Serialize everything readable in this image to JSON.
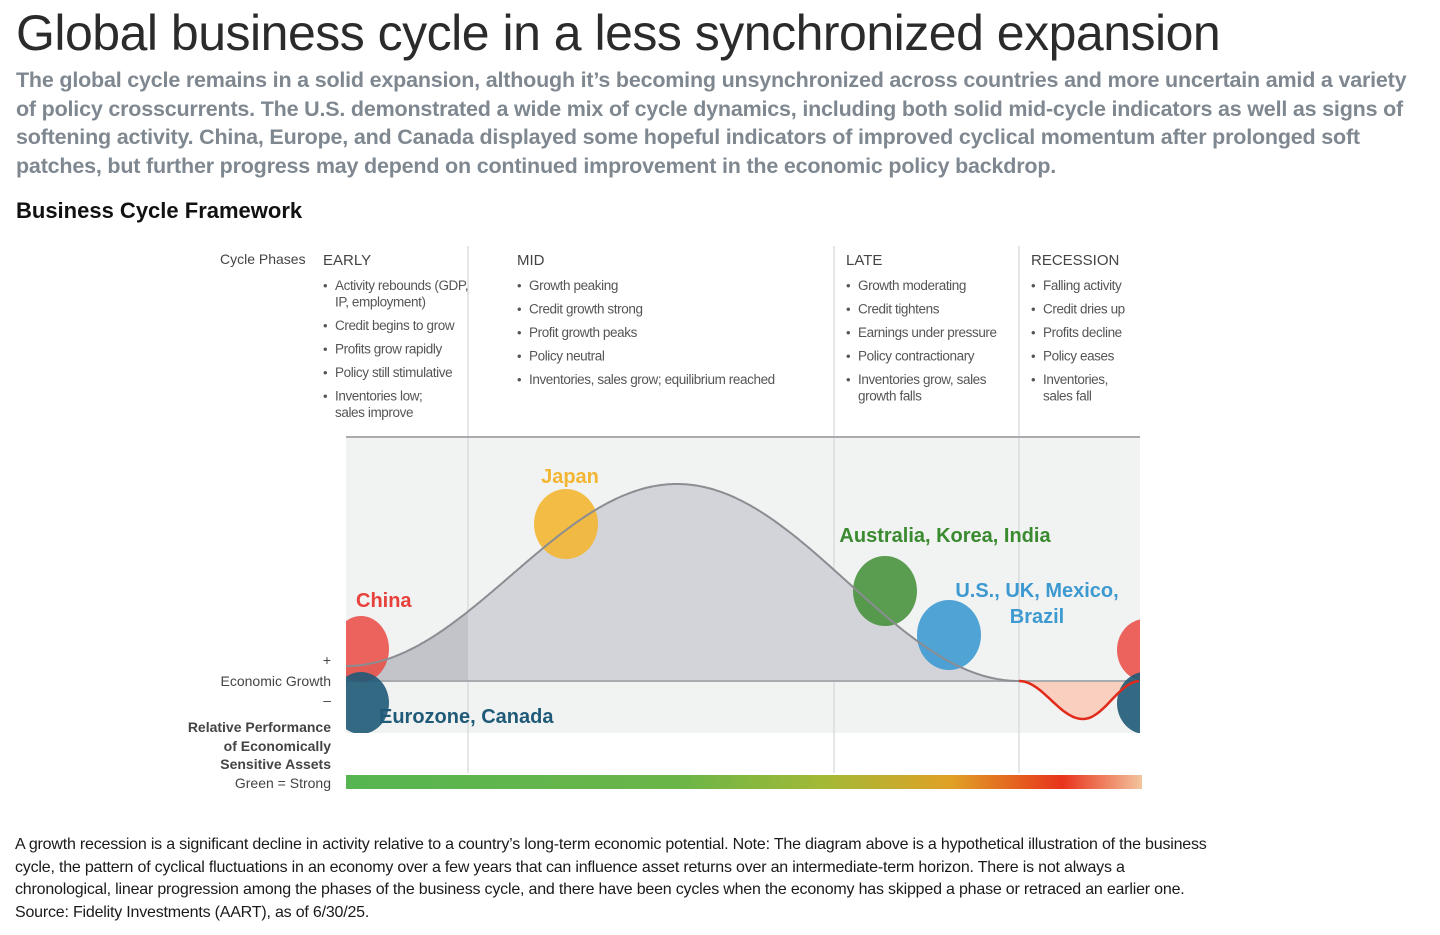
{
  "title": "Global business cycle in a less synchronized expansion",
  "subtitle": "The global cycle remains in a solid expansion, although it’s becoming unsynchronized across countries and more uncertain amid a variety of policy crosscurrents. The U.S. demonstrated a wide mix of cycle dynamics, including both solid mid-cycle indicators as well as signs of softening activity. China, Europe, and Canada displayed some hopeful indicators of improved cyclical momentum after prolonged soft patches, but further progress may depend on continued improvement in the economic policy backdrop.",
  "section_heading": "Business Cycle Framework",
  "diagram": {
    "cycle_phases_label": "Cycle Phases",
    "phases": [
      {
        "name": "EARLY",
        "bullets": [
          [
            "Activity rebounds (GDP,",
            "IP, employment)"
          ],
          [
            "Credit begins to grow"
          ],
          [
            "Profits grow rapidly"
          ],
          [
            "Policy still stimulative"
          ],
          [
            "Inventories low;",
            "sales improve"
          ]
        ]
      },
      {
        "name": "MID",
        "bullets": [
          [
            "Growth peaking"
          ],
          [
            "Credit growth strong"
          ],
          [
            "Profit growth peaks"
          ],
          [
            "Policy neutral"
          ],
          [
            "Inventories, sales grow; equilibrium reached"
          ]
        ]
      },
      {
        "name": "LATE",
        "bullets": [
          [
            "Growth moderating"
          ],
          [
            "Credit tightens"
          ],
          [
            "Earnings under pressure"
          ],
          [
            "Policy contractionary"
          ],
          [
            "Inventories grow, sales",
            "growth falls"
          ]
        ]
      },
      {
        "name": "RECESSION",
        "bullets": [
          [
            "Falling activity"
          ],
          [
            "Credit dries up"
          ],
          [
            "Profits decline"
          ],
          [
            "Policy eases"
          ],
          [
            "Inventories,",
            "sales fall"
          ]
        ]
      }
    ],
    "growth_axis": {
      "plus": "+",
      "label": "Economic Growth",
      "minus": "–"
    },
    "performance_label": [
      "Relative Performance",
      "of Economically",
      "Sensitive Assets"
    ],
    "performance_legend": "Green = Strong",
    "countries": [
      {
        "label": "China",
        "color": "#e8413c",
        "phase": "EARLY"
      },
      {
        "label": "Eurozone, Canada",
        "color": "#1f5a78",
        "phase": "EARLY"
      },
      {
        "label": "Japan",
        "color": "#f2b632",
        "phase": "MID"
      },
      {
        "label": "Australia, Korea, India",
        "color": "#3a8a2f",
        "phase": "LATE"
      },
      {
        "label": [
          "U.S., UK, Mexico,",
          "Brazil"
        ],
        "color": "#3d9ad1",
        "phase": "LATE"
      }
    ],
    "colors": {
      "curve_area": "#d3d4d9",
      "background_panel": "#f1f2f2",
      "recession_fill": "#f9cfc0",
      "recession_line": "#e02a1a",
      "curve_line": "#8b8d92",
      "gradient": [
        "#56b551",
        "#8bbd3c",
        "#f2a623",
        "#e8341c",
        "#f3c49d"
      ]
    }
  },
  "footnote": "A growth recession is a significant decline in activity relative to a country’s long-term economic potential. Note: The diagram above is a hypothetical illustration of the business cycle, the pattern of cyclical fluctuations in an economy over a few years that can influence asset returns over an intermediate-term horizon. There is not always a chronological, linear progression among the phases of the business cycle, and there have been cycles when the economy has skipped a phase or retraced an earlier one. Source: Fidelity Investments (AART), as of 6/30/25."
}
